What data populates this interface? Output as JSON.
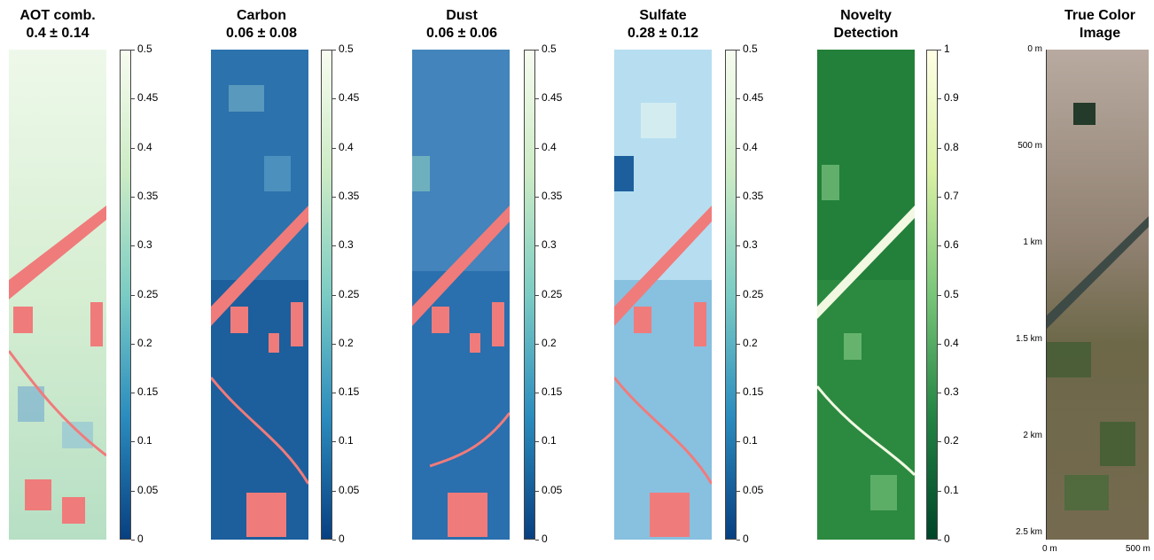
{
  "panels": [
    {
      "title_line1": "AOT comb.",
      "title_line2": "0.4 ± 0.14",
      "colormap": "GnBu_r",
      "colorbar_ticks": [
        "0",
        "0.05",
        "0.1",
        "0.15",
        "0.2",
        "0.25",
        "0.3",
        "0.35",
        "0.4",
        "0.45",
        "0.5"
      ]
    },
    {
      "title_line1": "Carbon",
      "title_line2": "0.06 ± 0.08",
      "colormap": "GnBu_r",
      "colorbar_ticks": [
        "0",
        "0.05",
        "0.1",
        "0.15",
        "0.2",
        "0.25",
        "0.3",
        "0.35",
        "0.4",
        "0.45",
        "0.5"
      ]
    },
    {
      "title_line1": "Dust",
      "title_line2": "0.06 ± 0.06",
      "colormap": "GnBu_r",
      "colorbar_ticks": [
        "0",
        "0.05",
        "0.1",
        "0.15",
        "0.2",
        "0.25",
        "0.3",
        "0.35",
        "0.4",
        "0.45",
        "0.5"
      ]
    },
    {
      "title_line1": "Sulfate",
      "title_line2": "0.28 ± 0.12",
      "colormap": "GnBu_r",
      "colorbar_ticks": [
        "0",
        "0.05",
        "0.1",
        "0.15",
        "0.2",
        "0.25",
        "0.3",
        "0.35",
        "0.4",
        "0.45",
        "0.5"
      ]
    },
    {
      "title_line1": "Novelty",
      "title_line2": "Detection",
      "colormap": "YlGn_r",
      "colorbar_ticks": [
        "0",
        "0.1",
        "0.2",
        "0.3",
        "0.4",
        "0.5",
        "0.6",
        "0.7",
        "0.8",
        "0.9",
        "1"
      ]
    },
    {
      "title_line1": "True Color",
      "title_line2": "Image",
      "colormap": "rgb"
    }
  ],
  "true_color_axes": {
    "y_ticks": [
      "0 m",
      "500 m",
      "1 km",
      "1.5 km",
      "2 km",
      "2.5 km"
    ],
    "x_ticks": [
      "0 m",
      "500 m"
    ]
  },
  "colors": {
    "masked": "#f07b7b",
    "aot_hi": "#eaf6e6",
    "aot_lo": "#b0dcc0",
    "carbon_bg": "#1c5f9c",
    "dust_bg": "#2a6fae",
    "sulfate_bg": "#b6def0",
    "novelty_bg": "#2b8a40",
    "river": "#3e4a46"
  }
}
